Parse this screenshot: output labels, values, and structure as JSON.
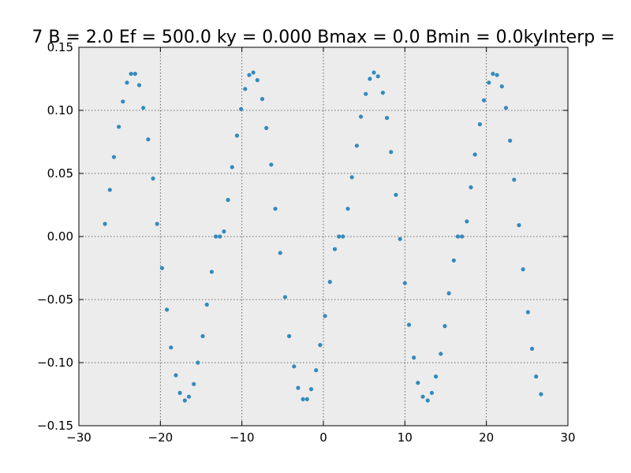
{
  "chart_data": {
    "type": "scatter",
    "title": "7 B = 2.0 Ef = 500.0 ky = 0.000 Bmax = 0.0 Bmin = 0.0kyInterp =",
    "xlabel": "",
    "ylabel": "",
    "xlim": [
      -30,
      30
    ],
    "ylim": [
      -0.15,
      0.15
    ],
    "xticks": [
      -30,
      -20,
      -10,
      0,
      10,
      20,
      30
    ],
    "yticks": [
      -0.15,
      -0.1,
      -0.05,
      0.0,
      0.05,
      0.1,
      0.15
    ],
    "xtick_labels": [
      "−30",
      "−20",
      "−10",
      "0",
      "10",
      "20",
      "30"
    ],
    "ytick_labels": [
      "−0.15",
      "−0.10",
      "−0.05",
      "0.00",
      "0.05",
      "0.10",
      "0.15"
    ],
    "grid": true,
    "background": "#ececec",
    "marker_color": "#348abd",
    "series": [
      {
        "x": [
          -26.8,
          -26.2,
          -25.7,
          -25.1,
          -24.6,
          -24.1,
          -23.6,
          -23.1,
          -22.6,
          -22.1,
          -21.5,
          -20.9,
          -20.4,
          -19.8,
          -19.2,
          -18.7,
          -18.1,
          -17.6,
          -17.0,
          -16.5,
          -15.9,
          -15.4,
          -14.8,
          -14.3,
          -13.7,
          -13.2,
          -12.7,
          -12.2,
          -11.7,
          -11.2,
          -10.6,
          -10.1,
          -9.6,
          -9.1,
          -8.6,
          -8.1,
          -7.5,
          -7.0,
          -6.4,
          -5.9,
          -5.3,
          -4.7,
          -4.2,
          -3.6,
          -3.1,
          -2.5,
          -2.0,
          -1.5,
          -0.9,
          -0.4,
          0.2,
          0.8,
          1.4,
          1.9,
          2.4,
          3.0,
          3.5,
          4.1,
          4.6,
          5.2,
          5.7,
          6.2,
          6.7,
          7.3,
          7.8,
          8.3,
          8.9,
          9.4,
          10.0,
          10.5,
          11.1,
          11.6,
          12.2,
          12.8,
          13.3,
          13.8,
          14.4,
          14.9,
          15.4,
          16.0,
          16.5,
          17.0,
          17.6,
          18.1,
          18.6,
          19.2,
          19.7,
          20.3,
          20.8,
          21.3,
          21.9,
          22.4,
          22.9,
          23.4,
          24.0,
          24.5,
          25.1,
          25.6,
          26.1,
          26.7
        ],
        "y": [
          0.01,
          0.037,
          0.063,
          0.087,
          0.107,
          0.122,
          0.129,
          0.129,
          0.12,
          0.102,
          0.077,
          0.046,
          0.01,
          -0.025,
          -0.058,
          -0.088,
          -0.11,
          -0.124,
          -0.13,
          -0.127,
          -0.117,
          -0.1,
          -0.079,
          -0.054,
          -0.028,
          0.0,
          0.0,
          0.004,
          0.029,
          0.055,
          0.08,
          0.101,
          0.117,
          0.128,
          0.13,
          0.124,
          0.109,
          0.086,
          0.057,
          0.022,
          -0.013,
          -0.048,
          -0.079,
          -0.103,
          -0.12,
          -0.129,
          -0.129,
          -0.121,
          -0.106,
          -0.086,
          -0.063,
          -0.036,
          -0.01,
          0.0,
          0.0,
          0.022,
          0.047,
          0.072,
          0.095,
          0.113,
          0.125,
          0.13,
          0.127,
          0.114,
          0.094,
          0.067,
          0.033,
          -0.002,
          -0.037,
          -0.07,
          -0.096,
          -0.116,
          -0.127,
          -0.13,
          -0.124,
          -0.111,
          -0.093,
          -0.071,
          -0.045,
          -0.019,
          0.0,
          0.0,
          0.012,
          0.039,
          0.065,
          0.089,
          0.108,
          0.122,
          0.129,
          0.128,
          0.119,
          0.102,
          0.076,
          0.045,
          0.009,
          -0.026,
          -0.06,
          -0.089,
          -0.111,
          -0.125
        ]
      }
    ]
  }
}
